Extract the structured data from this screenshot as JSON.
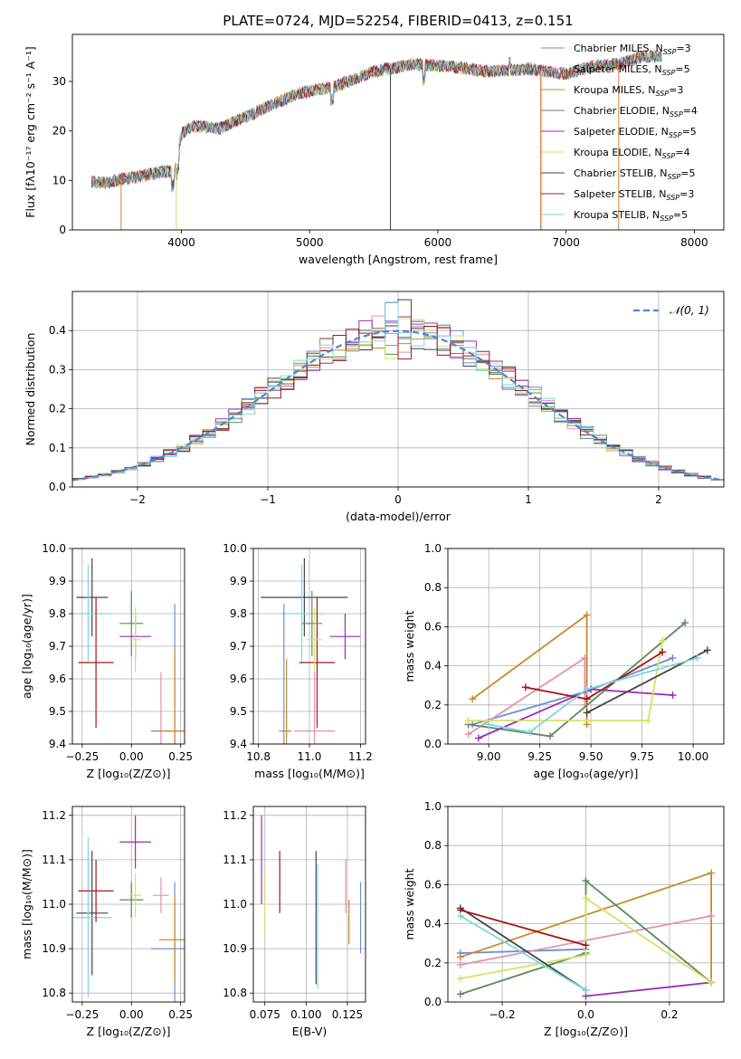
{
  "title": "PLATE=0724, MJD=52254, FIBERID=0413, z=0.151",
  "colors": [
    "#6b8fd4",
    "#e07b39",
    "#2e9e3e",
    "#d43a3a",
    "#9467bd",
    "#8c564b",
    "#e377c2",
    "#7f7f7f",
    "#bcbd22",
    "#17becf"
  ],
  "chart_data": [
    {
      "type": "line",
      "id": "spectrum",
      "xlabel": "wavelength [Angstrom, rest frame]",
      "ylabel": "Flux [fλ10⁻¹⁷ erg cm⁻² s⁻¹ A⁻¹]",
      "xlim": [
        3150,
        8230
      ],
      "ylim": [
        0,
        39.5
      ],
      "xticks": [
        4000,
        5000,
        6000,
        7000,
        8000
      ],
      "yticks": [
        0,
        10,
        20,
        30
      ],
      "grid": false,
      "legend_position": "top-right",
      "legend": [
        {
          "text": "Chabrier MILES, N_SSP=3",
          "color": "#6b8fd4"
        },
        {
          "text": "Salpeter MILES, N_SSP=5",
          "color": "#e58fb0"
        },
        {
          "text": "Kroupa MILES, N_SSP=3",
          "color": "#c9892a"
        },
        {
          "text": "Chabrier ELODIE, N_SSP=4",
          "color": "#5a8a5a"
        },
        {
          "text": "Salpeter ELODIE, N_SSP=5",
          "color": "#9a2db0"
        },
        {
          "text": "Kroupa ELODIE, N_SSP=4",
          "color": "#d6e06a"
        },
        {
          "text": "Chabrier STELIB, N_SSP=5",
          "color": "#444444"
        },
        {
          "text": "Salpeter STELIB, N_SSP=3",
          "color": "#a01818"
        },
        {
          "text": "Kroupa STELIB, N_SSP=5",
          "color": "#7fd6e0"
        }
      ],
      "series_anchor_points": {
        "x": [
          3300,
          3400,
          3600,
          3800,
          3950,
          4000,
          4100,
          4300,
          4600,
          4900,
          5200,
          5500,
          5800,
          6100,
          6400,
          6700,
          7000,
          7200,
          7400,
          7600
        ],
        "y": [
          9.8,
          9.5,
          10.5,
          11.5,
          12.0,
          19.5,
          21.0,
          20.5,
          24.0,
          27.5,
          29.0,
          32.0,
          33.5,
          33.0,
          32.0,
          32.5,
          31.5,
          33.0,
          33.5,
          35.0
        ]
      }
    },
    {
      "type": "histogram",
      "id": "residuals",
      "xlabel": "(data-model)/error",
      "ylabel": "Normed distribution",
      "xlim": [
        -2.5,
        2.5
      ],
      "ylim": [
        0,
        0.5
      ],
      "xticks": [
        -2,
        -1,
        0,
        1,
        2
      ],
      "yticks": [
        0.0,
        0.1,
        0.2,
        0.3,
        0.4
      ],
      "grid": true,
      "bin_width": 0.1,
      "reference_curve": {
        "label": "𝒩(0, 1)",
        "mean": 0,
        "sigma": 1
      },
      "legend_position": "top-right"
    },
    {
      "type": "errorbar",
      "id": "age_vs_Z",
      "xlabel": "Z [log₁₀(Z/Z⊙)]",
      "ylabel": "age [log₁₀(age/yr)]",
      "xlim": [
        -0.3,
        0.27
      ],
      "ylim": [
        9.4,
        10.0
      ],
      "xticks": [
        -0.25,
        0.0,
        0.25
      ],
      "yticks": [
        9.4,
        9.5,
        9.6,
        9.7,
        9.8,
        9.9,
        10.0
      ],
      "grid": true,
      "points": [
        {
          "color": "#444444",
          "x": -0.2,
          "xerr": 0.08,
          "y": 9.85,
          "yerr": 0.12
        },
        {
          "color": "#7fd6e0",
          "x": -0.22,
          "xerr": 0.12,
          "y": 9.8,
          "yerr": 0.15
        },
        {
          "color": "#a01818",
          "x": -0.18,
          "xerr": 0.09,
          "y": 9.65,
          "yerr": 0.2
        },
        {
          "color": "#5a8a5a",
          "x": 0.0,
          "xerr": 0.06,
          "y": 9.77,
          "yerr": 0.1
        },
        {
          "color": "#9a2db0",
          "x": 0.02,
          "xerr": 0.08,
          "y": 9.73,
          "yerr": 0.07
        },
        {
          "color": "#d6e06a",
          "x": 0.02,
          "xerr": 0.03,
          "y": 9.72,
          "yerr": 0.1
        },
        {
          "color": "#e58fb0",
          "x": 0.15,
          "xerr": 0.04,
          "y": 9.44,
          "yerr": 0.18
        },
        {
          "color": "#6b8fd4",
          "x": 0.22,
          "xerr": 0.12,
          "y": 9.44,
          "yerr": 0.39
        },
        {
          "color": "#c9892a",
          "x": 0.22,
          "xerr": 0.08,
          "y": 9.44,
          "yerr": 0.25
        }
      ]
    },
    {
      "type": "errorbar",
      "id": "age_vs_mass",
      "xlabel": "mass [log₁₀(M/M⊙)]",
      "ylabel": "",
      "xlim": [
        10.78,
        11.22
      ],
      "ylim": [
        9.4,
        10.0
      ],
      "xticks": [
        10.8,
        11.0,
        11.2
      ],
      "yticks": [
        9.4,
        9.5,
        9.6,
        9.7,
        9.8,
        9.9,
        10.0
      ],
      "grid": true,
      "points": [
        {
          "color": "#444444",
          "x": 10.98,
          "xerr": 0.17,
          "y": 9.85,
          "yerr": 0.12
        },
        {
          "color": "#7fd6e0",
          "x": 10.97,
          "xerr": 0.09,
          "y": 9.8,
          "yerr": 0.15
        },
        {
          "color": "#a01818",
          "x": 11.03,
          "xerr": 0.07,
          "y": 9.65,
          "yerr": 0.2
        },
        {
          "color": "#5a8a5a",
          "x": 11.01,
          "xerr": 0.04,
          "y": 9.77,
          "yerr": 0.1
        },
        {
          "color": "#9a2db0",
          "x": 11.14,
          "xerr": 0.06,
          "y": 9.73,
          "yerr": 0.07
        },
        {
          "color": "#d6e06a",
          "x": 11.02,
          "xerr": 0.03,
          "y": 9.72,
          "yerr": 0.1
        },
        {
          "color": "#e58fb0",
          "x": 11.02,
          "xerr": 0.08,
          "y": 9.44,
          "yerr": 0.18
        },
        {
          "color": "#6b8fd4",
          "x": 10.9,
          "xerr": 0.02,
          "y": 9.44,
          "yerr": 0.39
        },
        {
          "color": "#c9892a",
          "x": 10.91,
          "xerr": 0.02,
          "y": 9.44,
          "yerr": 0.22
        }
      ]
    },
    {
      "type": "line",
      "id": "massweight_vs_age",
      "xlabel": "age  [log₁₀(age/yr)]",
      "ylabel": "mass weight",
      "xlim": [
        8.8,
        10.15
      ],
      "ylim": [
        0,
        1.0
      ],
      "xticks": [
        9.0,
        9.25,
        9.5,
        9.75,
        10.0
      ],
      "xticklabels": [
        "9.00",
        "9.25",
        "9.50",
        "9.75",
        "10.00"
      ],
      "yticks": [
        0.0,
        0.2,
        0.4,
        0.6,
        0.8,
        1.0
      ],
      "grid": true,
      "series": [
        {
          "color": "#6b8fd4",
          "x": [
            8.92,
            9.48,
            9.9
          ],
          "y": [
            0.1,
            0.27,
            0.44
          ]
        },
        {
          "color": "#c9892a",
          "x": [
            8.92,
            9.48,
            9.48
          ],
          "y": [
            0.23,
            0.66,
            0.1
          ]
        },
        {
          "color": "#e58fb0",
          "x": [
            8.9,
            9.47,
            9.47
          ],
          "y": [
            0.05,
            0.44,
            0.2
          ]
        },
        {
          "color": "#5a8a5a",
          "x": [
            8.9,
            9.3,
            9.96
          ],
          "y": [
            0.1,
            0.04,
            0.62
          ]
        },
        {
          "color": "#9a2db0",
          "x": [
            8.95,
            9.5,
            9.9
          ],
          "y": [
            0.03,
            0.28,
            0.25
          ]
        },
        {
          "color": "#d6e06a",
          "x": [
            8.9,
            9.78,
            9.85
          ],
          "y": [
            0.12,
            0.12,
            0.53
          ]
        },
        {
          "color": "#444444",
          "x": [
            9.48,
            10.07
          ],
          "y": [
            0.16,
            0.48
          ]
        },
        {
          "color": "#a01818",
          "x": [
            9.18,
            9.48,
            9.85
          ],
          "y": [
            0.29,
            0.23,
            0.47
          ]
        },
        {
          "color": "#7fd6e0",
          "x": [
            9.0,
            9.2,
            9.48,
            10.02
          ],
          "y": [
            0.1,
            0.06,
            0.28,
            0.44
          ]
        }
      ]
    },
    {
      "type": "errorbar",
      "id": "mass_vs_Z",
      "xlabel": "Z [log₁₀(Z/Z⊙)]",
      "ylabel": "mass [log₁₀(M/M⊙)]",
      "xlim": [
        -0.3,
        0.27
      ],
      "ylim": [
        10.78,
        11.22
      ],
      "xticks": [
        -0.25,
        0.0,
        0.25
      ],
      "yticks": [
        10.8,
        10.9,
        11.0,
        11.1,
        11.2
      ],
      "grid": true,
      "points": [
        {
          "color": "#444444",
          "x": -0.2,
          "xerr": 0.08,
          "y": 10.98,
          "yerr": 0.14
        },
        {
          "color": "#7fd6e0",
          "x": -0.22,
          "xerr": 0.12,
          "y": 10.97,
          "yerr": 0.18
        },
        {
          "color": "#a01818",
          "x": -0.18,
          "xerr": 0.09,
          "y": 11.03,
          "yerr": 0.07
        },
        {
          "color": "#5a8a5a",
          "x": 0.0,
          "xerr": 0.06,
          "y": 11.01,
          "yerr": 0.04
        },
        {
          "color": "#9a2db0",
          "x": 0.02,
          "xerr": 0.08,
          "y": 11.14,
          "yerr": 0.06
        },
        {
          "color": "#d6e06a",
          "x": 0.02,
          "xerr": 0.03,
          "y": 11.02,
          "yerr": 0.05
        },
        {
          "color": "#e58fb0",
          "x": 0.15,
          "xerr": 0.04,
          "y": 11.02,
          "yerr": 0.04
        },
        {
          "color": "#6b8fd4",
          "x": 0.22,
          "xerr": 0.12,
          "y": 10.9,
          "yerr": 0.15
        },
        {
          "color": "#c9892a",
          "x": 0.22,
          "xerr": 0.08,
          "y": 10.92,
          "yerr": 0.1
        }
      ]
    },
    {
      "type": "errorbar",
      "id": "mass_vs_ebv",
      "xlabel": "E(B-V)",
      "ylabel": "",
      "xlim": [
        0.068,
        0.136
      ],
      "ylim": [
        10.78,
        11.22
      ],
      "xticks": [
        0.075,
        0.1,
        0.125
      ],
      "xticklabels": [
        "0.075",
        "0.100",
        "0.125"
      ],
      "yticks": [
        10.8,
        10.9,
        11.0,
        11.1,
        11.2
      ],
      "grid": true,
      "points": [
        {
          "color": "#9a2db0",
          "x": 0.073,
          "y": 11.1,
          "yerr": 0.1
        },
        {
          "color": "#d6e06a",
          "x": 0.075,
          "y": 11.0,
          "yerr": 0.07
        },
        {
          "color": "#a01818",
          "x": 0.084,
          "y": 11.05,
          "yerr": 0.07
        },
        {
          "color": "#444444",
          "x": 0.106,
          "y": 10.97,
          "yerr": 0.15
        },
        {
          "color": "#7fd6e0",
          "x": 0.107,
          "y": 10.95,
          "yerr": 0.14
        },
        {
          "color": "#e58fb0",
          "x": 0.124,
          "y": 11.04,
          "yerr": 0.06
        },
        {
          "color": "#c9892a",
          "x": 0.126,
          "y": 10.96,
          "yerr": 0.05
        },
        {
          "color": "#6b8fd4",
          "x": 0.133,
          "y": 10.97,
          "yerr": 0.08
        }
      ]
    },
    {
      "type": "line",
      "id": "massweight_vs_Z",
      "xlabel": "Z [log₁₀(Z/Z⊙)]",
      "ylabel": "mass weight",
      "xlim": [
        -0.33,
        0.33
      ],
      "ylim": [
        0,
        1.0
      ],
      "xticks": [
        -0.2,
        0.0,
        0.2
      ],
      "yticks": [
        0.0,
        0.2,
        0.4,
        0.6,
        0.8,
        1.0
      ],
      "grid": true,
      "series": [
        {
          "color": "#6b8fd4",
          "x": [
            -0.3,
            0.0
          ],
          "y": [
            0.25,
            0.27
          ]
        },
        {
          "color": "#c9892a",
          "x": [
            -0.3,
            0.3,
            0.3
          ],
          "y": [
            0.23,
            0.66,
            0.1
          ]
        },
        {
          "color": "#e58fb0",
          "x": [
            -0.3,
            0.3
          ],
          "y": [
            0.19,
            0.44
          ]
        },
        {
          "color": "#5a8a5a",
          "x": [
            -0.3,
            0.0,
            0.0,
            0.3
          ],
          "y": [
            0.04,
            0.25,
            0.62,
            0.1
          ]
        },
        {
          "color": "#9a2db0",
          "x": [
            0.0,
            0.3
          ],
          "y": [
            0.03,
            0.1
          ]
        },
        {
          "color": "#d6e06a",
          "x": [
            -0.3,
            0.0,
            0.0,
            0.3
          ],
          "y": [
            0.12,
            0.24,
            0.53,
            0.1
          ]
        },
        {
          "color": "#444444",
          "x": [
            -0.3,
            0.0
          ],
          "y": [
            0.48,
            0.06
          ]
        },
        {
          "color": "#a01818",
          "x": [
            -0.3,
            0.0
          ],
          "y": [
            0.47,
            0.29
          ]
        },
        {
          "color": "#7fd6e0",
          "x": [
            -0.3,
            0.0
          ],
          "y": [
            0.44,
            0.06
          ]
        }
      ]
    }
  ]
}
